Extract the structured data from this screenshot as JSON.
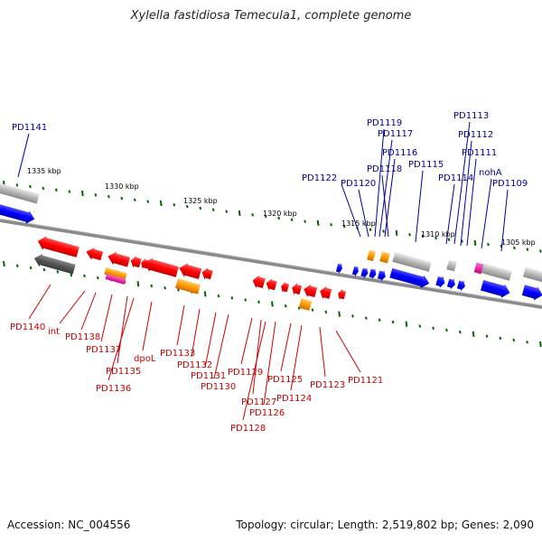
{
  "title": "Xylella fastidiosa Temecula1, complete genome",
  "footer": {
    "accession": "Accession: NC_004556",
    "topology": "Topology: circular; Length: 2,519,802 bp; Genes: 2,090"
  },
  "scale_labels": [
    "1335 kbp",
    "1330 kbp",
    "1325 kbp",
    "1320 kbp",
    "1315 kbp",
    "1310 kbp",
    "1305 kbp"
  ],
  "top_labels": [
    "PD1141",
    "PD1122",
    "PD1120",
    "PD1119",
    "PD1117",
    "PD1116",
    "PD1118",
    "PD1115",
    "PD1114",
    "PD1113",
    "PD1112",
    "PD1111",
    "nohA",
    "PD1109"
  ],
  "bottom_labels": [
    "PD1140",
    "int",
    "PD1138",
    "PD1137",
    "PD1135",
    "PD1136",
    "dpoL",
    "PD1133",
    "PD1132",
    "PD1131",
    "PD1130",
    "PD1129",
    "PD1127",
    "PD1128",
    "PD1126",
    "PD1125",
    "PD1124",
    "PD1123",
    "PD1121"
  ],
  "colors": {
    "reverse_strand": "#ff0000",
    "forward_strand": "#0000ff",
    "rna": "#ff9900",
    "pseudo": "#999999",
    "top_label": "#000099",
    "bottom_label": "#cc0000",
    "tick": "#006600"
  }
}
